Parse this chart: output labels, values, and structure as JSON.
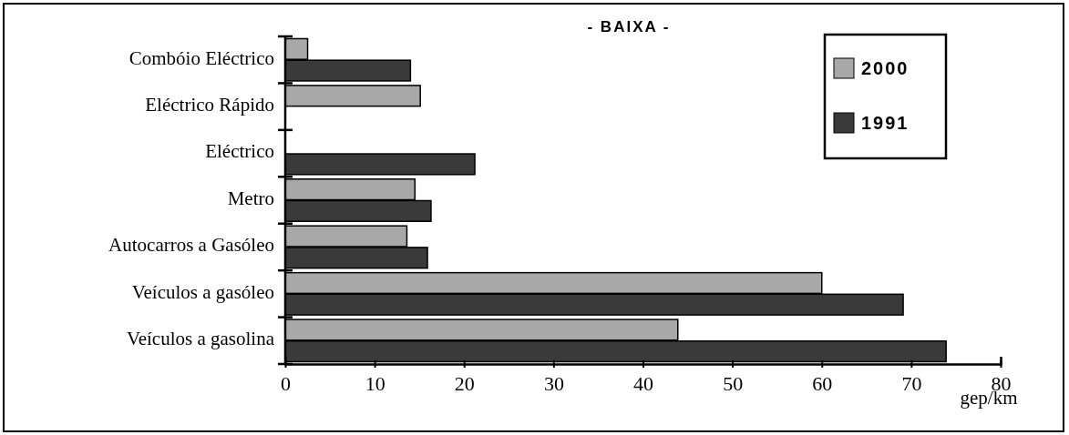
{
  "chart_data": {
    "type": "bar",
    "orientation": "horizontal",
    "title": "- BAIXA -",
    "xlabel": "gep/km",
    "categories": [
      "Combóio Eléctrico",
      "Eléctrico Rápido",
      "Eléctrico",
      "Metro",
      "Autocarros a Gasóleo",
      "Veículos a gasóleo",
      "Veículos a gasolina"
    ],
    "series": [
      {
        "name": "2000",
        "color": "#a8a8a8",
        "values": [
          2.5,
          15.1,
          null,
          14.5,
          13.6,
          60.0,
          43.9
        ]
      },
      {
        "name": "1991",
        "color": "#3a3a3a",
        "values": [
          14.0,
          null,
          21.2,
          16.3,
          15.9,
          69.1,
          73.9
        ]
      }
    ],
    "xlim": [
      0,
      80
    ],
    "xticks": [
      0,
      10,
      20,
      30,
      40,
      50,
      60,
      70,
      80
    ],
    "grid": false,
    "legend": "top right"
  }
}
